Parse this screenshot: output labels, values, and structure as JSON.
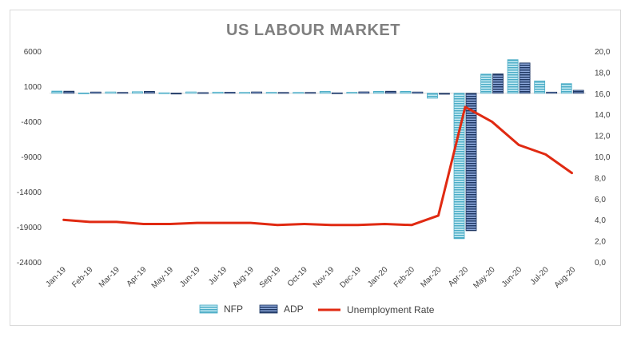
{
  "chart_data": {
    "type": "bar",
    "title": "US LABOUR MARKET",
    "categories": [
      "Jan-19",
      "Feb-19",
      "Mar-19",
      "Apr-19",
      "May-19",
      "Jun-19",
      "Jul-19",
      "Aug-19",
      "Sep-19",
      "Oct-19",
      "Nov-19",
      "Dec-19",
      "Jan-20",
      "Feb-20",
      "Mar-20",
      "Apr-20",
      "May-20",
      "Jun-20",
      "Jul-20",
      "Aug-20"
    ],
    "y_left": {
      "ticks": [
        "6000",
        "1000",
        "-4000",
        "-9000",
        "-14000",
        "-19000",
        "-24000"
      ],
      "ylim": [
        -24000,
        6000
      ]
    },
    "y_right": {
      "ticks": [
        "20,0",
        "18,0",
        "16,0",
        "14,0",
        "12,0",
        "10,0",
        "8,0",
        "6,0",
        "4,0",
        "2,0",
        "0,0"
      ],
      "ylim": [
        0,
        20
      ]
    },
    "series": [
      {
        "name": "NFP",
        "axis": "left",
        "kind": "bar",
        "color": "#4bacc6",
        "values": [
          312,
          56,
          189,
          224,
          75,
          193,
          164,
          130,
          136,
          128,
          266,
          145,
          273,
          273,
          -701,
          -20687,
          2725,
          4781,
          1763,
          1371
        ]
      },
      {
        "name": "ADP",
        "axis": "left",
        "kind": "bar",
        "color": "#1f3864",
        "values": [
          300,
          183,
          130,
          275,
          27,
          102,
          156,
          195,
          125,
          125,
          67,
          202,
          291,
          183,
          -27,
          -19557,
          2760,
          4314,
          167,
          428
        ]
      },
      {
        "name": "Unemployment Rate",
        "axis": "right",
        "kind": "line",
        "color": "#e02a12",
        "values": [
          4.0,
          3.8,
          3.8,
          3.6,
          3.6,
          3.7,
          3.7,
          3.7,
          3.5,
          3.6,
          3.5,
          3.5,
          3.6,
          3.5,
          4.4,
          14.7,
          13.3,
          11.1,
          10.2,
          8.4
        ]
      }
    ],
    "legend_position": "bottom",
    "grid": false
  }
}
